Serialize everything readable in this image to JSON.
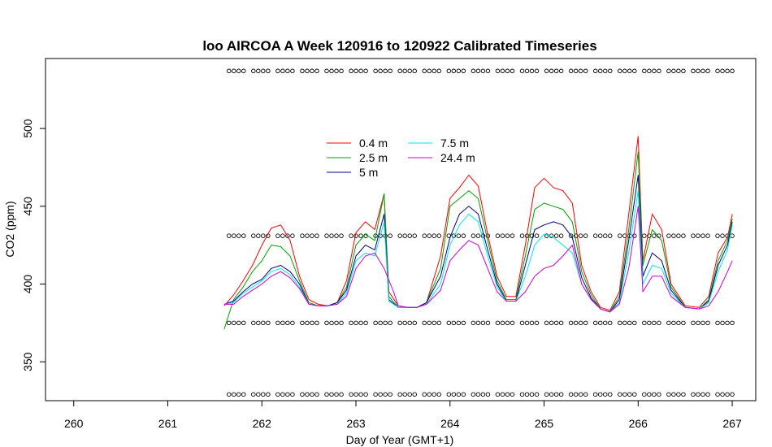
{
  "chart_data": {
    "type": "line",
    "title": "loo AIRCOA A  Week 120916 to 120922  Calibrated Timeseries",
    "xlabel": "Day of Year (GMT+1)",
    "ylabel": "CO2 (ppm)",
    "xlim": [
      259.7,
      267.25
    ],
    "ylim": [
      325,
      545
    ],
    "x_ticks": [
      260,
      261,
      262,
      263,
      264,
      265,
      266,
      267
    ],
    "y_ticks": [
      350,
      400,
      450,
      500
    ],
    "grid": false,
    "legend_position": "top-center",
    "series": [
      {
        "name": "0.4 m",
        "color": "#ff0000",
        "points": [
          [
            261.6,
            386
          ],
          [
            261.7,
            393
          ],
          [
            261.8,
            402
          ],
          [
            261.9,
            412
          ],
          [
            262.0,
            425
          ],
          [
            262.1,
            436
          ],
          [
            262.2,
            438
          ],
          [
            262.3,
            428
          ],
          [
            262.4,
            405
          ],
          [
            262.5,
            390
          ],
          [
            262.6,
            387
          ],
          [
            262.7,
            386
          ],
          [
            262.8,
            388
          ],
          [
            262.9,
            402
          ],
          [
            263.0,
            433
          ],
          [
            263.1,
            440
          ],
          [
            263.2,
            435
          ],
          [
            263.3,
            458
          ],
          [
            263.35,
            395
          ],
          [
            263.45,
            386
          ],
          [
            263.55,
            385
          ],
          [
            263.65,
            385
          ],
          [
            263.75,
            388
          ],
          [
            263.9,
            418
          ],
          [
            264.0,
            455
          ],
          [
            264.1,
            462
          ],
          [
            264.2,
            470
          ],
          [
            264.3,
            463
          ],
          [
            264.4,
            432
          ],
          [
            264.5,
            405
          ],
          [
            264.6,
            392
          ],
          [
            264.7,
            392
          ],
          [
            264.8,
            425
          ],
          [
            264.9,
            462
          ],
          [
            265.0,
            468
          ],
          [
            265.1,
            462
          ],
          [
            265.2,
            460
          ],
          [
            265.3,
            452
          ],
          [
            265.4,
            412
          ],
          [
            265.5,
            395
          ],
          [
            265.6,
            385
          ],
          [
            265.7,
            383
          ],
          [
            265.8,
            395
          ],
          [
            265.9,
            445
          ],
          [
            266.0,
            495
          ],
          [
            266.05,
            415
          ],
          [
            266.15,
            445
          ],
          [
            266.25,
            435
          ],
          [
            266.35,
            400
          ],
          [
            266.5,
            386
          ],
          [
            266.65,
            385
          ],
          [
            266.75,
            392
          ],
          [
            266.85,
            420
          ],
          [
            266.95,
            430
          ],
          [
            267.0,
            445
          ]
        ]
      },
      {
        "name": "2.5 m",
        "color": "#00a000",
        "points": [
          [
            261.6,
            371
          ],
          [
            261.7,
            390
          ],
          [
            261.8,
            398
          ],
          [
            261.9,
            408
          ],
          [
            262.0,
            415
          ],
          [
            262.1,
            425
          ],
          [
            262.2,
            424
          ],
          [
            262.3,
            418
          ],
          [
            262.4,
            402
          ],
          [
            262.5,
            388
          ],
          [
            262.6,
            386
          ],
          [
            262.7,
            386
          ],
          [
            262.8,
            388
          ],
          [
            262.9,
            398
          ],
          [
            263.0,
            425
          ],
          [
            263.1,
            432
          ],
          [
            263.2,
            428
          ],
          [
            263.3,
            458
          ],
          [
            263.35,
            392
          ],
          [
            263.45,
            385
          ],
          [
            263.55,
            385
          ],
          [
            263.65,
            385
          ],
          [
            263.75,
            388
          ],
          [
            263.9,
            410
          ],
          [
            264.0,
            450
          ],
          [
            264.1,
            455
          ],
          [
            264.2,
            460
          ],
          [
            264.3,
            455
          ],
          [
            264.4,
            428
          ],
          [
            264.5,
            402
          ],
          [
            264.6,
            390
          ],
          [
            264.7,
            390
          ],
          [
            264.8,
            418
          ],
          [
            264.9,
            448
          ],
          [
            265.0,
            452
          ],
          [
            265.1,
            450
          ],
          [
            265.2,
            448
          ],
          [
            265.3,
            440
          ],
          [
            265.4,
            408
          ],
          [
            265.5,
            393
          ],
          [
            265.6,
            384
          ],
          [
            265.7,
            382
          ],
          [
            265.8,
            392
          ],
          [
            265.9,
            435
          ],
          [
            266.0,
            485
          ],
          [
            266.05,
            412
          ],
          [
            266.15,
            435
          ],
          [
            266.25,
            428
          ],
          [
            266.35,
            398
          ],
          [
            266.5,
            385
          ],
          [
            266.65,
            384
          ],
          [
            266.75,
            390
          ],
          [
            266.85,
            415
          ],
          [
            266.95,
            428
          ],
          [
            267.0,
            442
          ]
        ]
      },
      {
        "name": "5 m",
        "color": "#00008b",
        "points": [
          [
            261.6,
            387
          ],
          [
            261.7,
            389
          ],
          [
            261.8,
            395
          ],
          [
            261.9,
            400
          ],
          [
            262.0,
            403
          ],
          [
            262.1,
            410
          ],
          [
            262.2,
            412
          ],
          [
            262.3,
            408
          ],
          [
            262.4,
            400
          ],
          [
            262.5,
            387
          ],
          [
            262.6,
            386
          ],
          [
            262.7,
            386
          ],
          [
            262.8,
            388
          ],
          [
            262.9,
            396
          ],
          [
            263.0,
            418
          ],
          [
            263.1,
            425
          ],
          [
            263.2,
            422
          ],
          [
            263.3,
            445
          ],
          [
            263.35,
            390
          ],
          [
            263.45,
            385
          ],
          [
            263.55,
            385
          ],
          [
            263.65,
            385
          ],
          [
            263.75,
            388
          ],
          [
            263.9,
            405
          ],
          [
            264.0,
            430
          ],
          [
            264.1,
            445
          ],
          [
            264.2,
            450
          ],
          [
            264.3,
            445
          ],
          [
            264.4,
            422
          ],
          [
            264.5,
            400
          ],
          [
            264.6,
            389
          ],
          [
            264.7,
            389
          ],
          [
            264.8,
            412
          ],
          [
            264.9,
            435
          ],
          [
            265.0,
            438
          ],
          [
            265.1,
            440
          ],
          [
            265.2,
            438
          ],
          [
            265.3,
            430
          ],
          [
            265.4,
            404
          ],
          [
            265.5,
            391
          ],
          [
            265.6,
            384
          ],
          [
            265.7,
            382
          ],
          [
            265.8,
            390
          ],
          [
            265.9,
            428
          ],
          [
            266.0,
            470
          ],
          [
            266.05,
            405
          ],
          [
            266.15,
            420
          ],
          [
            266.25,
            415
          ],
          [
            266.35,
            396
          ],
          [
            266.5,
            385
          ],
          [
            266.65,
            384
          ],
          [
            266.75,
            389
          ],
          [
            266.85,
            412
          ],
          [
            266.95,
            425
          ],
          [
            267.0,
            440
          ]
        ]
      },
      {
        "name": "7.5 m",
        "color": "#00e5ee",
        "points": [
          [
            261.6,
            387
          ],
          [
            261.7,
            388
          ],
          [
            261.8,
            394
          ],
          [
            261.9,
            398
          ],
          [
            262.0,
            402
          ],
          [
            262.1,
            408
          ],
          [
            262.2,
            410
          ],
          [
            262.3,
            406
          ],
          [
            262.4,
            398
          ],
          [
            262.5,
            387
          ],
          [
            262.6,
            386
          ],
          [
            262.7,
            386
          ],
          [
            262.8,
            387
          ],
          [
            262.9,
            394
          ],
          [
            263.0,
            415
          ],
          [
            263.1,
            420
          ],
          [
            263.2,
            418
          ],
          [
            263.3,
            440
          ],
          [
            263.35,
            389
          ],
          [
            263.45,
            385
          ],
          [
            263.55,
            385
          ],
          [
            263.65,
            385
          ],
          [
            263.75,
            387
          ],
          [
            263.9,
            400
          ],
          [
            264.0,
            425
          ],
          [
            264.1,
            438
          ],
          [
            264.2,
            445
          ],
          [
            264.3,
            440
          ],
          [
            264.4,
            418
          ],
          [
            264.5,
            398
          ],
          [
            264.6,
            389
          ],
          [
            264.7,
            389
          ],
          [
            264.8,
            405
          ],
          [
            264.9,
            425
          ],
          [
            265.0,
            432
          ],
          [
            265.1,
            430
          ],
          [
            265.2,
            425
          ],
          [
            265.3,
            420
          ],
          [
            265.4,
            400
          ],
          [
            265.5,
            390
          ],
          [
            265.6,
            384
          ],
          [
            265.7,
            382
          ],
          [
            265.8,
            388
          ],
          [
            265.9,
            420
          ],
          [
            266.0,
            460
          ],
          [
            266.05,
            400
          ],
          [
            266.15,
            412
          ],
          [
            266.25,
            410
          ],
          [
            266.35,
            394
          ],
          [
            266.5,
            385
          ],
          [
            266.65,
            384
          ],
          [
            266.75,
            388
          ],
          [
            266.85,
            408
          ],
          [
            266.95,
            422
          ],
          [
            267.0,
            438
          ]
        ]
      },
      {
        "name": "24.4 m",
        "color": "#cc00cc",
        "points": [
          [
            261.6,
            387
          ],
          [
            261.7,
            387
          ],
          [
            261.8,
            392
          ],
          [
            261.9,
            396
          ],
          [
            262.0,
            400
          ],
          [
            262.1,
            405
          ],
          [
            262.2,
            408
          ],
          [
            262.3,
            404
          ],
          [
            262.4,
            397
          ],
          [
            262.5,
            387
          ],
          [
            262.6,
            386
          ],
          [
            262.7,
            386
          ],
          [
            262.8,
            387
          ],
          [
            262.9,
            392
          ],
          [
            263.0,
            410
          ],
          [
            263.1,
            418
          ],
          [
            263.2,
            420
          ],
          [
            263.3,
            410
          ],
          [
            263.4,
            395
          ],
          [
            263.45,
            386
          ],
          [
            263.55,
            385
          ],
          [
            263.65,
            385
          ],
          [
            263.75,
            387
          ],
          [
            263.9,
            396
          ],
          [
            264.0,
            415
          ],
          [
            264.1,
            422
          ],
          [
            264.2,
            428
          ],
          [
            264.3,
            425
          ],
          [
            264.4,
            410
          ],
          [
            264.5,
            395
          ],
          [
            264.6,
            389
          ],
          [
            264.7,
            389
          ],
          [
            264.8,
            395
          ],
          [
            264.9,
            405
          ],
          [
            265.0,
            410
          ],
          [
            265.1,
            412
          ],
          [
            265.2,
            418
          ],
          [
            265.3,
            425
          ],
          [
            265.4,
            400
          ],
          [
            265.5,
            390
          ],
          [
            265.6,
            384
          ],
          [
            265.7,
            382
          ],
          [
            265.8,
            387
          ],
          [
            265.9,
            410
          ],
          [
            266.0,
            450
          ],
          [
            266.05,
            395
          ],
          [
            266.15,
            405
          ],
          [
            266.25,
            405
          ],
          [
            266.35,
            392
          ],
          [
            266.5,
            385
          ],
          [
            266.65,
            384
          ],
          [
            266.75,
            386
          ],
          [
            266.85,
            395
          ],
          [
            266.95,
            408
          ],
          [
            267.0,
            415
          ]
        ]
      }
    ],
    "marker_rows": [
      {
        "y": 537,
        "x_start": 261.65,
        "x_end": 267.0
      },
      {
        "y": 431,
        "x_start": 261.65,
        "x_end": 267.0
      },
      {
        "y": 375,
        "x_start": 261.65,
        "x_end": 267.0
      },
      {
        "y": 329,
        "x_start": 261.65,
        "x_end": 267.0
      }
    ],
    "marker_symbol": "circle"
  }
}
